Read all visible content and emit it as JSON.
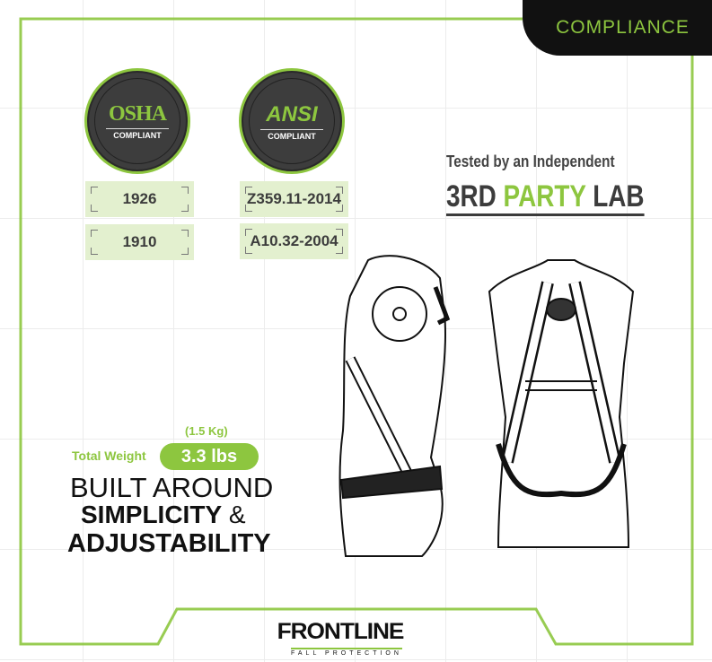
{
  "header": {
    "tab_label": "COMPLIANCE"
  },
  "badges": [
    {
      "name": "OSHA",
      "sub": "COMPLIANT",
      "standards": [
        "1926",
        "1910"
      ]
    },
    {
      "name": "ANSI",
      "sub": "COMPLIANT",
      "standards": [
        "Z359.11-2014",
        "A10.32-2004"
      ]
    }
  ],
  "testing": {
    "line1": "Tested by an Independent",
    "prefix": "3RD",
    "highlight": "PARTY",
    "suffix": "LAB"
  },
  "weight": {
    "label": "Total Weight",
    "value": "3.3 lbs",
    "metric": "(1.5 Kg)"
  },
  "tagline": {
    "line1": "BUILT AROUND",
    "line2_bold": "SIMPLICITY",
    "line2_amp": "&",
    "line3": "ADJUSTABILITY"
  },
  "brand": {
    "name": "FRONTLINE",
    "sub": "FALL PROTECTION"
  },
  "colors": {
    "accent": "#8dc63f",
    "dark": "#3d3d3d",
    "tab": "#111111"
  }
}
